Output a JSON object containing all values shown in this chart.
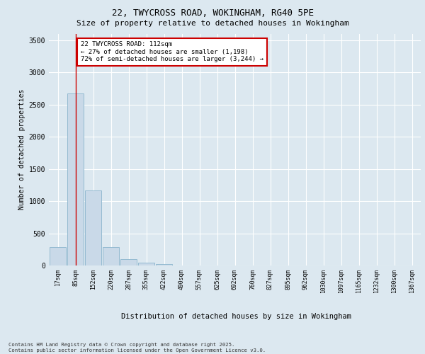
{
  "title_line1": "22, TWYCROSS ROAD, WOKINGHAM, RG40 5PE",
  "title_line2": "Size of property relative to detached houses in Wokingham",
  "xlabel": "Distribution of detached houses by size in Wokingham",
  "ylabel": "Number of detached properties",
  "bar_labels": [
    "17sqm",
    "85sqm",
    "152sqm",
    "220sqm",
    "287sqm",
    "355sqm",
    "422sqm",
    "490sqm",
    "557sqm",
    "625sqm",
    "692sqm",
    "760sqm",
    "827sqm",
    "895sqm",
    "962sqm",
    "1030sqm",
    "1097sqm",
    "1165sqm",
    "1232sqm",
    "1300sqm",
    "1367sqm"
  ],
  "bar_values": [
    290,
    2670,
    1160,
    290,
    95,
    40,
    20,
    0,
    0,
    0,
    0,
    0,
    0,
    0,
    0,
    0,
    0,
    0,
    0,
    0,
    0
  ],
  "bar_color": "#c9d9e8",
  "bar_edge_color": "#8ab4cc",
  "ylim": [
    0,
    3600
  ],
  "yticks": [
    0,
    500,
    1000,
    1500,
    2000,
    2500,
    3000,
    3500
  ],
  "vline_x": 1,
  "vline_color": "#cc0000",
  "annotation_text": "22 TWYCROSS ROAD: 112sqm\n← 27% of detached houses are smaller (1,198)\n72% of semi-detached houses are larger (3,244) →",
  "annotation_box_color": "#ffffff",
  "annotation_box_edge": "#cc0000",
  "footer_text": "Contains HM Land Registry data © Crown copyright and database right 2025.\nContains public sector information licensed under the Open Government Licence v3.0.",
  "bg_color": "#dce8f0",
  "plot_bg_color": "#dce8f0",
  "grid_color": "#ffffff",
  "fig_bg_color": "#dce8f0"
}
